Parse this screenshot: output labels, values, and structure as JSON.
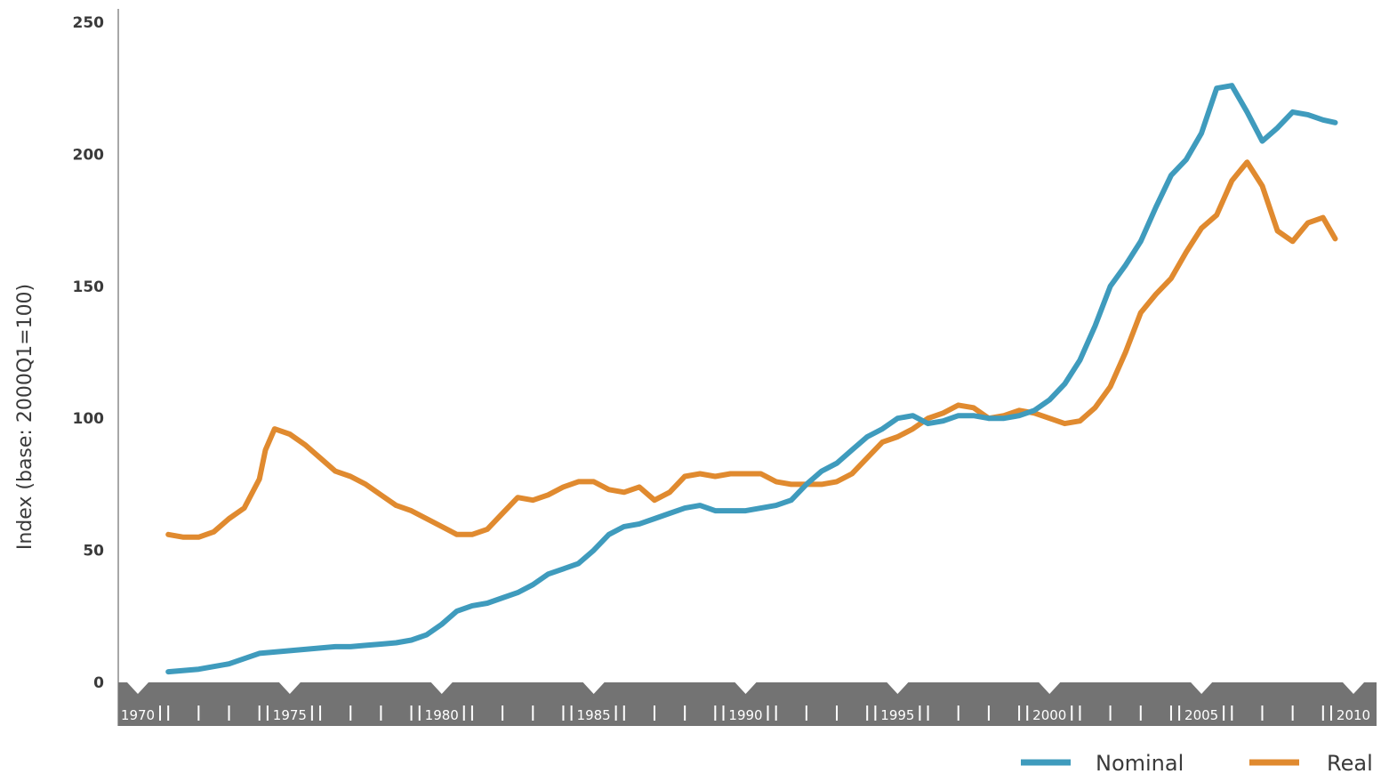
{
  "chart_data": {
    "type": "line",
    "title": "",
    "xlabel": "",
    "ylabel": "Index (base: 2000Q1=100)",
    "xlim": [
      1970,
      2010
    ],
    "ylim": [
      0,
      250
    ],
    "y_ticks": [
      0,
      50,
      100,
      150,
      200,
      250
    ],
    "x_ticks": [
      1970,
      1975,
      1980,
      1985,
      1990,
      1995,
      2000,
      2005,
      2010
    ],
    "grid": false,
    "legend_placement": "bottom-right",
    "series": [
      {
        "name": "Nominal",
        "color": "#3f9bbd",
        "x": [
          1971.0,
          1972.0,
          1972.5,
          1973.0,
          1973.5,
          1974.0,
          1974.5,
          1975.0,
          1975.5,
          1976.0,
          1976.5,
          1977.0,
          1977.5,
          1978.0,
          1978.5,
          1979.0,
          1979.5,
          1980.0,
          1980.5,
          1981.0,
          1981.5,
          1982.0,
          1982.5,
          1983.0,
          1983.5,
          1984.0,
          1984.5,
          1985.0,
          1985.5,
          1986.0,
          1986.5,
          1987.0,
          1987.5,
          1988.0,
          1988.5,
          1989.0,
          1989.5,
          1990.0,
          1990.5,
          1991.0,
          1991.5,
          1992.0,
          1992.5,
          1993.0,
          1993.5,
          1994.0,
          1994.5,
          1995.0,
          1995.5,
          1996.0,
          1996.5,
          1997.0,
          1997.5,
          1998.0,
          1998.5,
          1999.0,
          1999.5,
          2000.0,
          2000.5,
          2001.0,
          2001.5,
          2002.0,
          2002.5,
          2003.0,
          2003.5,
          2004.0,
          2004.5,
          2005.0,
          2005.5,
          2006.0,
          2006.5,
          2007.0,
          2007.5,
          2008.0,
          2008.5,
          2009.0,
          2009.4
        ],
        "values": [
          4,
          5,
          6,
          7,
          9,
          11,
          11.5,
          12,
          12.5,
          13,
          13.5,
          13.5,
          14,
          14.5,
          15,
          16,
          18,
          22,
          27,
          29,
          30,
          32,
          34,
          37,
          41,
          43,
          45,
          50,
          56,
          59,
          60,
          62,
          64,
          66,
          67,
          65,
          65,
          65,
          66,
          67,
          69,
          75,
          80,
          83,
          88,
          93,
          96,
          100,
          101,
          98,
          99,
          101,
          101,
          100,
          100,
          101,
          103,
          107,
          113,
          122,
          135,
          150,
          158,
          167,
          180,
          192,
          198,
          208,
          225,
          226,
          216,
          205,
          210,
          216,
          215,
          213,
          212
        ]
      },
      {
        "name": "Real",
        "color": "#e08a2f",
        "x": [
          1971.0,
          1971.5,
          1972.0,
          1972.5,
          1973.0,
          1973.5,
          1974.0,
          1974.2,
          1974.5,
          1975.0,
          1975.5,
          1976.0,
          1976.5,
          1977.0,
          1977.5,
          1978.0,
          1978.5,
          1979.0,
          1979.5,
          1980.0,
          1980.5,
          1981.0,
          1981.5,
          1982.0,
          1982.5,
          1983.0,
          1983.5,
          1984.0,
          1984.5,
          1985.0,
          1985.5,
          1986.0,
          1986.5,
          1987.0,
          1987.5,
          1988.0,
          1988.5,
          1989.0,
          1989.5,
          1990.0,
          1990.5,
          1991.0,
          1991.5,
          1992.0,
          1992.5,
          1993.0,
          1993.5,
          1994.0,
          1994.5,
          1995.0,
          1995.5,
          1996.0,
          1996.5,
          1997.0,
          1997.5,
          1998.0,
          1998.5,
          1999.0,
          1999.5,
          2000.0,
          2000.5,
          2001.0,
          2001.5,
          2002.0,
          2002.5,
          2003.0,
          2003.5,
          2004.0,
          2004.5,
          2005.0,
          2005.5,
          2006.0,
          2006.5,
          2007.0,
          2007.5,
          2008.0,
          2008.5,
          2009.0,
          2009.4
        ],
        "values": [
          56,
          55,
          55,
          57,
          62,
          66,
          77,
          88,
          96,
          94,
          90,
          85,
          80,
          78,
          75,
          71,
          67,
          65,
          62,
          59,
          56,
          56,
          58,
          64,
          70,
          69,
          71,
          74,
          76,
          76,
          73,
          72,
          74,
          69,
          72,
          78,
          79,
          78,
          79,
          79,
          79,
          76,
          75,
          75,
          75,
          76,
          79,
          85,
          91,
          93,
          96,
          100,
          102,
          105,
          104,
          100,
          101,
          103,
          102,
          100,
          98,
          99,
          104,
          112,
          125,
          140,
          147,
          153,
          163,
          172,
          177,
          190,
          197,
          188,
          171,
          167,
          174,
          176,
          168
        ]
      }
    ]
  }
}
